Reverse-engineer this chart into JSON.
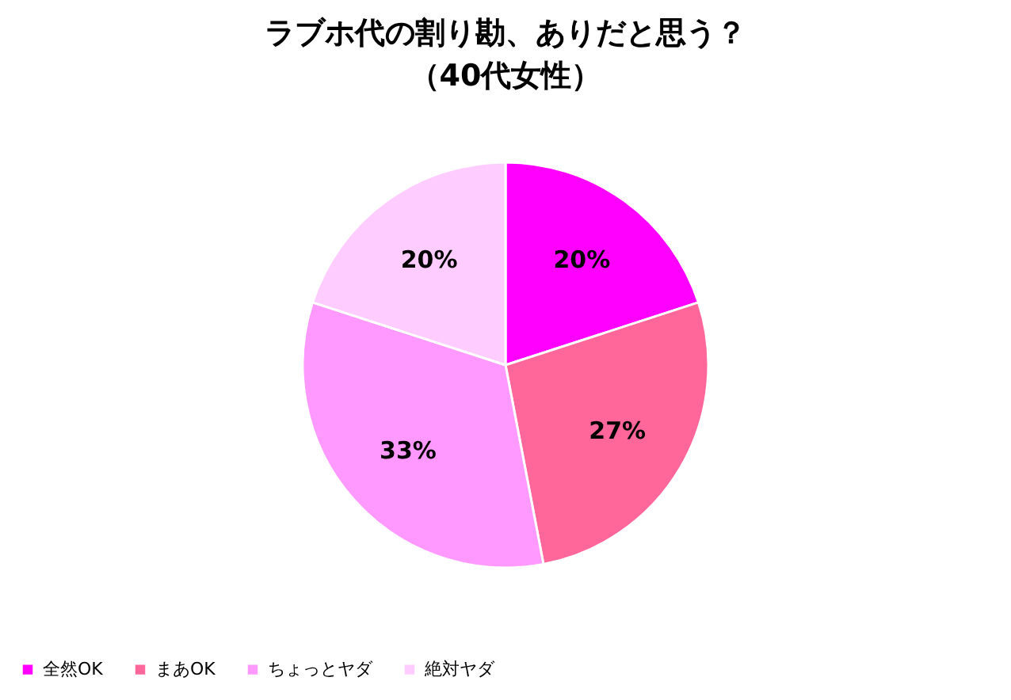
{
  "chart_data": {
    "type": "pie",
    "title": "ラブホ代の割り勘、ありだと思う？",
    "subtitle": "（40代女性）",
    "categories": [
      "全然OK",
      "まあOK",
      "ちょっとヤダ",
      "絶対ヤダ"
    ],
    "values": [
      20,
      27,
      33,
      20
    ],
    "colors": [
      "#ff00ff",
      "#ff6699",
      "#ff99ff",
      "#ffccff"
    ],
    "value_labels": [
      "20%",
      "27%",
      "33%",
      "20%"
    ],
    "legend": "bottom"
  }
}
